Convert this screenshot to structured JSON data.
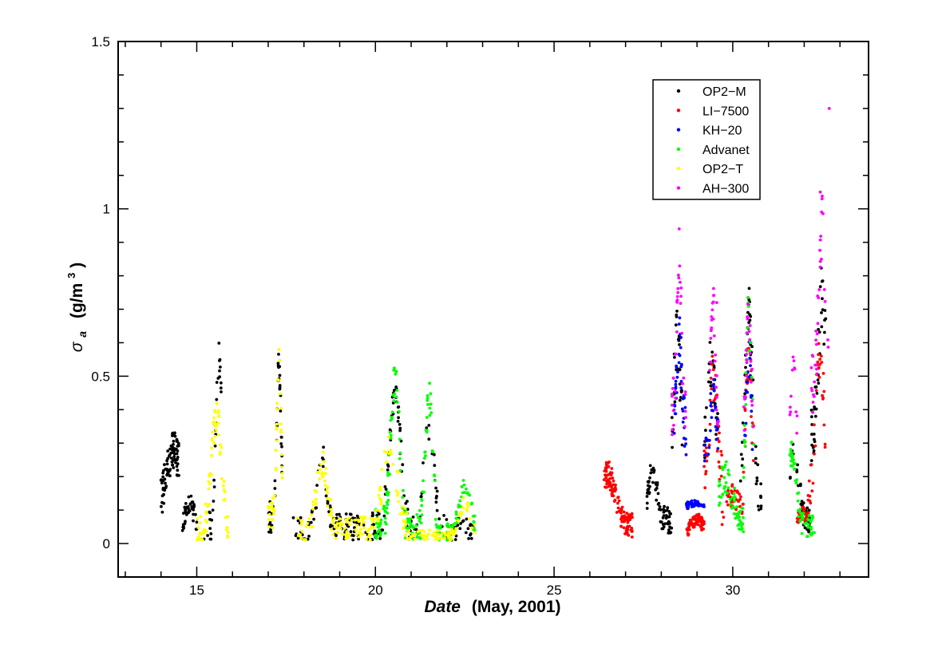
{
  "chart_data": {
    "type": "scatter",
    "title": "",
    "xlabel": {
      "italic": "Date",
      "rest": "(May,  2001)"
    },
    "ylabel": {
      "symbol": "σ",
      "subscript": "a",
      "unit_prefix": "(g/m",
      "unit_power": "3",
      "unit_suffix": ")"
    },
    "xlim": [
      12.8,
      33.8
    ],
    "ylim": [
      -0.1,
      1.5
    ],
    "x_ticks": [
      15,
      20,
      25,
      30
    ],
    "x_tick_labels": [
      "15",
      "20",
      "25",
      "30"
    ],
    "y_ticks": [
      0,
      0.5,
      1,
      1.5
    ],
    "y_tick_labels": [
      "0",
      "0.5",
      "1",
      "1.5"
    ],
    "grid": false,
    "legend_position": "top-right",
    "series": [
      {
        "name": "OP2−M",
        "color": "#000000",
        "segments": [
          {
            "x0": 14.0,
            "x1": 14.5,
            "base": 0.1,
            "amp": 0.18,
            "sigma": 0.2,
            "center": 14.35,
            "noise": 0.06,
            "n": 90
          },
          {
            "x0": 14.6,
            "x1": 15.0,
            "base": 0.06,
            "amp": 0.06,
            "sigma": 0.1,
            "center": 14.8,
            "noise": 0.03,
            "n": 40
          },
          {
            "x0": 15.2,
            "x1": 15.7,
            "base": 0.05,
            "amp": 0.5,
            "sigma": 0.08,
            "center": 15.62,
            "noise": 0.05,
            "n": 30
          },
          {
            "x0": 17.0,
            "x1": 17.4,
            "base": 0.08,
            "amp": 0.45,
            "sigma": 0.06,
            "center": 17.3,
            "noise": 0.05,
            "n": 40
          },
          {
            "x0": 17.7,
            "x1": 19.8,
            "base": 0.05,
            "amp": 0.22,
            "sigma": 0.12,
            "center": 18.5,
            "noise": 0.04,
            "n": 90
          },
          {
            "x0": 19.9,
            "x1": 21.0,
            "base": 0.05,
            "amp": 0.4,
            "sigma": 0.15,
            "center": 20.55,
            "noise": 0.05,
            "n": 70
          },
          {
            "x0": 21.0,
            "x1": 22.8,
            "base": 0.04,
            "amp": 0.3,
            "sigma": 0.15,
            "center": 21.5,
            "noise": 0.04,
            "n": 60
          },
          {
            "x0": 27.6,
            "x1": 28.3,
            "base": 0.07,
            "amp": 0.15,
            "sigma": 0.12,
            "center": 27.75,
            "noise": 0.04,
            "n": 70
          },
          {
            "x0": 28.3,
            "x1": 28.6,
            "base": 0.2,
            "amp": 0.4,
            "sigma": 0.1,
            "center": 28.45,
            "noise": 0.1,
            "n": 30
          },
          {
            "x0": 29.2,
            "x1": 29.6,
            "base": 0.25,
            "amp": 0.3,
            "sigma": 0.1,
            "center": 29.4,
            "noise": 0.08,
            "n": 30
          },
          {
            "x0": 30.2,
            "x1": 30.8,
            "base": 0.15,
            "amp": 0.55,
            "sigma": 0.1,
            "center": 30.45,
            "noise": 0.08,
            "n": 45
          },
          {
            "x0": 31.6,
            "x1": 32.2,
            "base": 0.06,
            "amp": 0.2,
            "sigma": 0.15,
            "center": 31.7,
            "noise": 0.04,
            "n": 40
          },
          {
            "x0": 32.2,
            "x1": 32.6,
            "base": 0.3,
            "amp": 0.45,
            "sigma": 0.1,
            "center": 32.5,
            "noise": 0.1,
            "n": 40
          }
        ]
      },
      {
        "name": "LI−7500",
        "color": "#ff0000",
        "segments": [
          {
            "x0": 26.4,
            "x1": 27.2,
            "base": 0.05,
            "amp": 0.16,
            "sigma": 0.2,
            "center": 26.5,
            "noise": 0.04,
            "n": 120
          },
          {
            "x0": 28.7,
            "x1": 29.2,
            "base": 0.02,
            "amp": 0.05,
            "sigma": 0.2,
            "center": 29.0,
            "noise": 0.02,
            "n": 60
          },
          {
            "x0": 29.2,
            "x1": 29.7,
            "base": 0.2,
            "amp": 0.3,
            "sigma": 0.1,
            "center": 29.45,
            "noise": 0.08,
            "n": 40
          },
          {
            "x0": 29.7,
            "x1": 30.3,
            "base": 0.05,
            "amp": 0.1,
            "sigma": 0.2,
            "center": 30.0,
            "noise": 0.04,
            "n": 40
          },
          {
            "x0": 30.3,
            "x1": 30.6,
            "base": 0.2,
            "amp": 0.35,
            "sigma": 0.08,
            "center": 30.45,
            "noise": 0.08,
            "n": 25
          },
          {
            "x0": 31.8,
            "x1": 32.1,
            "base": 0.04,
            "amp": 0.05,
            "sigma": 0.15,
            "center": 31.95,
            "noise": 0.02,
            "n": 40
          },
          {
            "x0": 32.1,
            "x1": 32.6,
            "base": 0.15,
            "amp": 0.4,
            "sigma": 0.12,
            "center": 32.45,
            "noise": 0.08,
            "n": 35
          }
        ]
      },
      {
        "name": "KH−20",
        "color": "#0000ff",
        "segments": [
          {
            "x0": 28.35,
            "x1": 28.7,
            "base": 0.3,
            "amp": 0.3,
            "sigma": 0.08,
            "center": 28.5,
            "noise": 0.08,
            "n": 45
          },
          {
            "x0": 28.7,
            "x1": 29.2,
            "base": 0.11,
            "amp": 0.01,
            "sigma": 0.2,
            "center": 29.0,
            "noise": 0.01,
            "n": 60
          },
          {
            "x0": 29.2,
            "x1": 29.6,
            "base": 0.25,
            "amp": 0.2,
            "sigma": 0.08,
            "center": 29.45,
            "noise": 0.06,
            "n": 35
          },
          {
            "x0": 30.3,
            "x1": 30.55,
            "base": 0.25,
            "amp": 0.3,
            "sigma": 0.06,
            "center": 30.45,
            "noise": 0.06,
            "n": 20
          }
        ]
      },
      {
        "name": "Advanet",
        "color": "#00ff00",
        "segments": [
          {
            "x0": 20.0,
            "x1": 20.9,
            "base": 0.05,
            "amp": 0.45,
            "sigma": 0.12,
            "center": 20.55,
            "noise": 0.06,
            "n": 80
          },
          {
            "x0": 20.9,
            "x1": 21.7,
            "base": 0.04,
            "amp": 0.4,
            "sigma": 0.1,
            "center": 21.5,
            "noise": 0.05,
            "n": 60
          },
          {
            "x0": 21.7,
            "x1": 22.8,
            "base": 0.03,
            "amp": 0.15,
            "sigma": 0.15,
            "center": 22.5,
            "noise": 0.03,
            "n": 60
          },
          {
            "x0": 29.6,
            "x1": 30.3,
            "base": 0.05,
            "amp": 0.15,
            "sigma": 0.2,
            "center": 29.8,
            "noise": 0.05,
            "n": 60
          },
          {
            "x0": 30.3,
            "x1": 30.6,
            "base": 0.2,
            "amp": 0.5,
            "sigma": 0.07,
            "center": 30.45,
            "noise": 0.08,
            "n": 25
          },
          {
            "x0": 31.6,
            "x1": 32.3,
            "base": 0.05,
            "amp": 0.22,
            "sigma": 0.12,
            "center": 31.65,
            "noise": 0.04,
            "n": 60
          }
        ]
      },
      {
        "name": "OP2−T",
        "color": "#ffff00",
        "segments": [
          {
            "x0": 15.0,
            "x1": 15.9,
            "base": 0.03,
            "amp": 0.35,
            "sigma": 0.15,
            "center": 15.55,
            "noise": 0.05,
            "n": 80
          },
          {
            "x0": 17.0,
            "x1": 17.4,
            "base": 0.08,
            "amp": 0.45,
            "sigma": 0.06,
            "center": 17.3,
            "noise": 0.05,
            "n": 40
          },
          {
            "x0": 17.8,
            "x1": 19.9,
            "base": 0.04,
            "amp": 0.2,
            "sigma": 0.15,
            "center": 18.5,
            "noise": 0.04,
            "n": 120
          },
          {
            "x0": 19.9,
            "x1": 20.9,
            "base": 0.04,
            "amp": 0.25,
            "sigma": 0.2,
            "center": 20.4,
            "noise": 0.05,
            "n": 50
          },
          {
            "x0": 20.9,
            "x1": 22.8,
            "base": 0.02,
            "amp": 0.1,
            "sigma": 0.15,
            "center": 22.5,
            "noise": 0.02,
            "n": 80
          }
        ]
      },
      {
        "name": "AH−300",
        "color": "#ff00ff",
        "segments": [
          {
            "x0": 28.3,
            "x1": 28.7,
            "base": 0.4,
            "amp": 0.45,
            "sigma": 0.06,
            "center": 28.5,
            "noise": 0.08,
            "n": 35
          },
          {
            "x0": 29.3,
            "x1": 29.6,
            "base": 0.35,
            "amp": 0.35,
            "sigma": 0.06,
            "center": 29.45,
            "noise": 0.07,
            "n": 25
          },
          {
            "x0": 30.3,
            "x1": 30.6,
            "base": 0.35,
            "amp": 0.35,
            "sigma": 0.06,
            "center": 30.45,
            "noise": 0.07,
            "n": 25
          },
          {
            "x0": 31.6,
            "x1": 31.8,
            "base": 0.3,
            "amp": 0.25,
            "sigma": 0.06,
            "center": 31.7,
            "noise": 0.05,
            "n": 12
          },
          {
            "x0": 32.2,
            "x1": 32.7,
            "base": 0.45,
            "amp": 0.5,
            "sigma": 0.1,
            "center": 32.5,
            "noise": 0.1,
            "n": 35
          }
        ],
        "extra_points": [
          [
            32.7,
            1.3
          ],
          [
            32.45,
            1.05
          ],
          [
            32.5,
            1.03
          ],
          [
            28.5,
            0.94
          ],
          [
            29.55,
            0.72
          ]
        ]
      }
    ]
  }
}
